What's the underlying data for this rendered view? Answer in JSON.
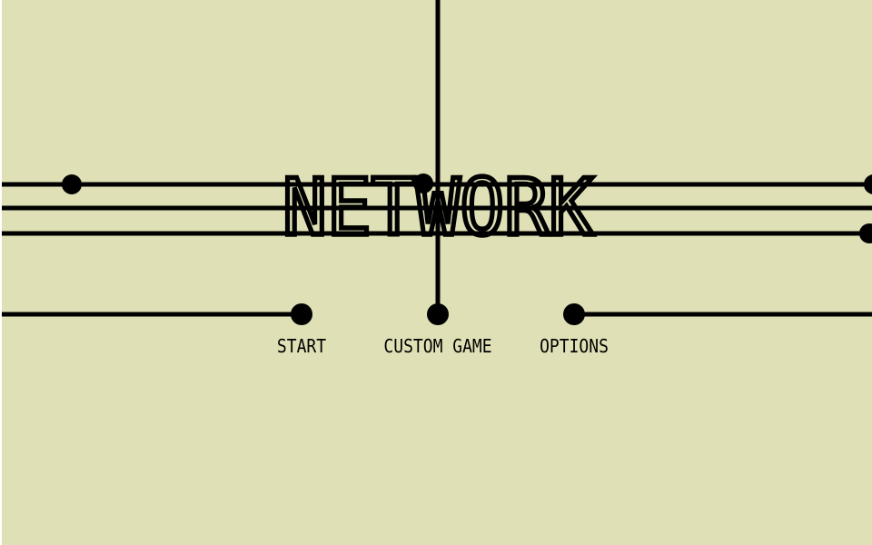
{
  "game": {
    "title": "NETWORK",
    "menu": [
      {
        "id": "start",
        "label": "START"
      },
      {
        "id": "custom-game",
        "label": "CUSTOM GAME"
      },
      {
        "id": "options",
        "label": "OPTIONS"
      }
    ]
  },
  "colors": {
    "background": "#e0e0b6",
    "ink": "#000000"
  }
}
